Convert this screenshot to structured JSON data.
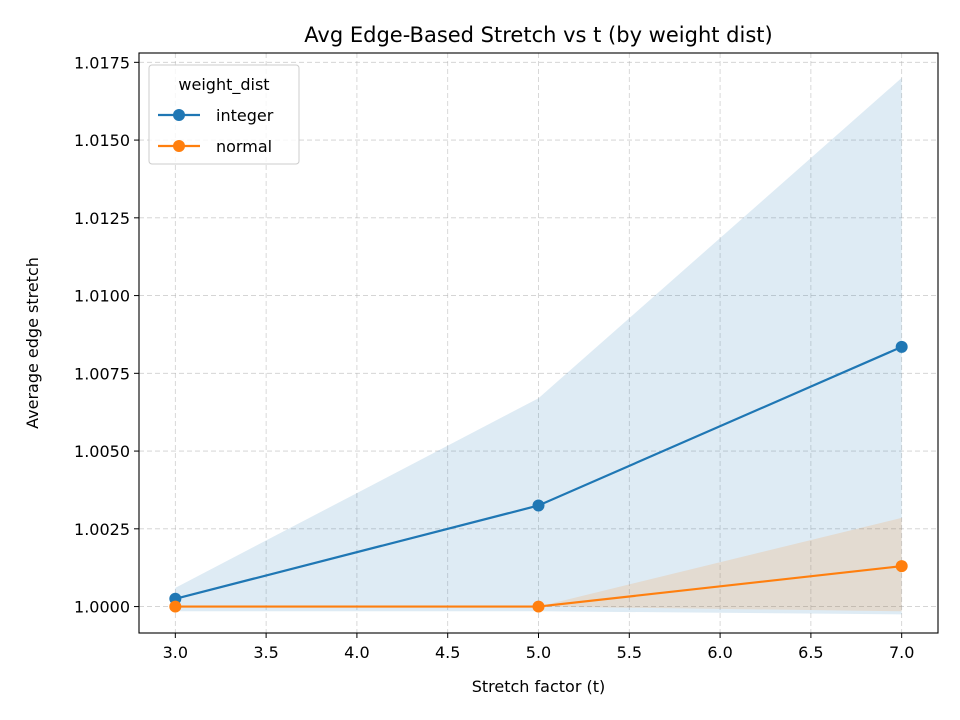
{
  "chart_data": {
    "type": "line",
    "title": "Avg Edge-Based Stretch vs t (by weight dist)",
    "xlabel": "Stretch factor (t)",
    "ylabel": "Average edge stretch",
    "xlim": [
      2.8,
      7.2
    ],
    "ylim": [
      0.99915,
      1.0178
    ],
    "x_ticks": [
      3.0,
      3.5,
      4.0,
      4.5,
      5.0,
      5.5,
      6.0,
      6.5,
      7.0
    ],
    "x_tick_labels": [
      "3.0",
      "3.5",
      "4.0",
      "4.5",
      "5.0",
      "5.5",
      "6.0",
      "6.5",
      "7.0"
    ],
    "y_ticks": [
      1.0,
      1.0025,
      1.005,
      1.0075,
      1.01,
      1.0125,
      1.015,
      1.0175
    ],
    "y_tick_labels": [
      "1.0000",
      "1.0025",
      "1.0050",
      "1.0075",
      "1.0100",
      "1.0125",
      "1.0150",
      "1.0175"
    ],
    "grid": true,
    "legend": {
      "title": "weight_dist",
      "position": "top-left"
    },
    "series": [
      {
        "name": "integer",
        "color": "#1f77b4",
        "x": [
          3.0,
          5.0,
          7.0
        ],
        "y": [
          1.00025,
          1.00325,
          1.00835
        ],
        "band_lower": [
          0.99985,
          0.99985,
          0.99975
        ],
        "band_upper": [
          1.0006,
          1.0067,
          1.017
        ]
      },
      {
        "name": "normal",
        "color": "#ff7f0e",
        "x": [
          3.0,
          5.0,
          7.0
        ],
        "y": [
          1.0,
          1.0,
          1.0013
        ],
        "band_lower": [
          1.0,
          1.0,
          0.99985
        ],
        "band_upper": [
          1.0,
          1.0,
          1.00285
        ]
      }
    ]
  }
}
